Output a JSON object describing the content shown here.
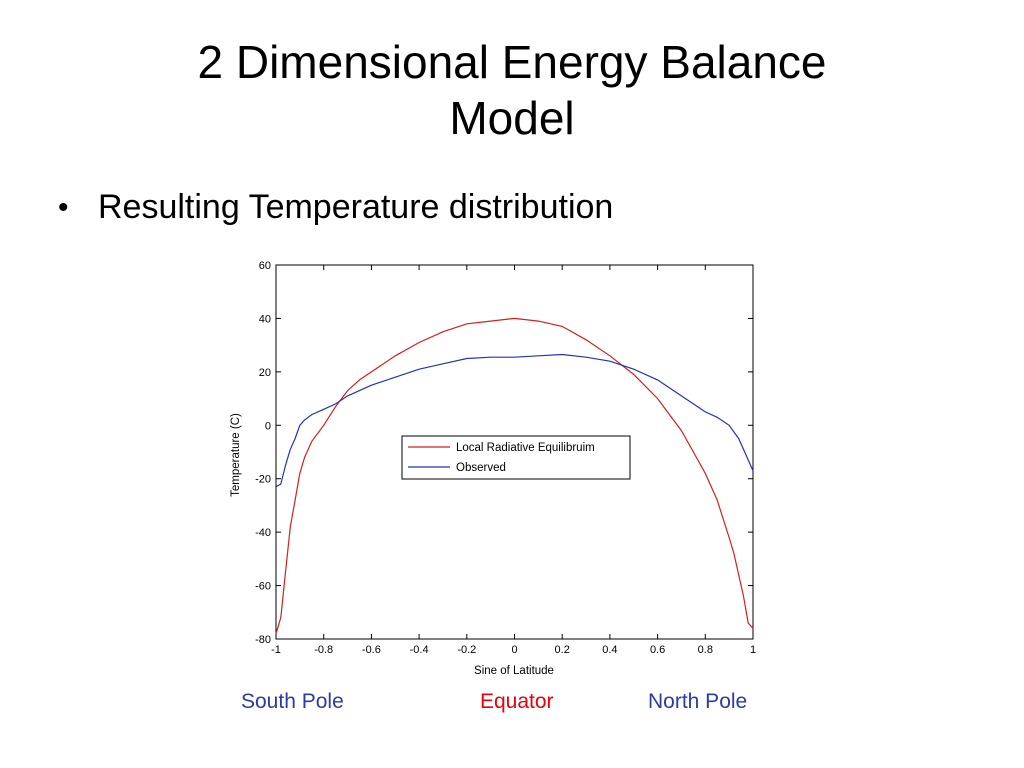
{
  "slide": {
    "title_line1": "2 Dimensional Energy Balance",
    "title_line2": "Model",
    "bullet": "Resulting Temperature distribution"
  },
  "labels": {
    "south": "South Pole",
    "equator": "Equator",
    "north": "North Pole"
  },
  "colors": {
    "south": "#2e3aa6",
    "equator": "#e8000b",
    "north": "#2e3aa6",
    "red_series": "#d21f1f",
    "blue_series": "#2333b7"
  },
  "chart_data": {
    "type": "line",
    "title": "",
    "xlabel": "Sine of Latitude",
    "ylabel": "Temperature (C)",
    "xlim": [
      -1,
      1
    ],
    "ylim": [
      -80,
      60
    ],
    "xticks": [
      -1,
      -0.8,
      -0.6,
      -0.4,
      -0.2,
      0,
      0.2,
      0.4,
      0.6,
      0.8,
      1
    ],
    "xtick_labels": [
      "-1",
      "-0.8",
      "-0.6",
      "-0.4",
      "-0.2",
      "0",
      "0.2",
      "0.4",
      "0.6",
      "0.8",
      "1"
    ],
    "yticks": [
      -80,
      -60,
      -40,
      -20,
      0,
      20,
      40,
      60
    ],
    "ytick_labels": [
      "-80",
      "-60",
      "-40",
      "-20",
      "0",
      "20",
      "40",
      "60"
    ],
    "legend_position": "center",
    "grid": false,
    "series": [
      {
        "name": "Local Radiative Equilibruim",
        "x": [
          -1,
          -0.98,
          -0.96,
          -0.94,
          -0.92,
          -0.9,
          -0.88,
          -0.85,
          -0.8,
          -0.75,
          -0.7,
          -0.65,
          -0.6,
          -0.5,
          -0.4,
          -0.3,
          -0.2,
          -0.1,
          0,
          0.1,
          0.2,
          0.3,
          0.4,
          0.5,
          0.6,
          0.65,
          0.7,
          0.75,
          0.8,
          0.85,
          0.9,
          0.92,
          0.94,
          0.96,
          0.98,
          1
        ],
        "y": [
          -78,
          -72,
          -55,
          -38,
          -28,
          -18,
          -12,
          -6,
          0,
          7,
          13,
          17,
          20,
          26,
          31,
          35,
          38,
          39,
          40,
          39,
          37,
          32,
          26,
          19,
          10,
          4,
          -2,
          -10,
          -18,
          -28,
          -42,
          -48,
          -56,
          -64,
          -74,
          -76
        ]
      },
      {
        "name": "Observed",
        "x": [
          -1,
          -0.98,
          -0.96,
          -0.94,
          -0.92,
          -0.9,
          -0.88,
          -0.85,
          -0.8,
          -0.75,
          -0.7,
          -0.65,
          -0.6,
          -0.5,
          -0.4,
          -0.3,
          -0.2,
          -0.1,
          0,
          0.1,
          0.2,
          0.3,
          0.4,
          0.5,
          0.6,
          0.7,
          0.75,
          0.8,
          0.85,
          0.9,
          0.94,
          0.96,
          0.98,
          1
        ],
        "y": [
          -23,
          -22,
          -15,
          -9,
          -5,
          0,
          2,
          4,
          6,
          8,
          11,
          13,
          15,
          18,
          21,
          23,
          25,
          25.5,
          25.5,
          26,
          26.5,
          25.5,
          24,
          21,
          17,
          11,
          8,
          5,
          3,
          0,
          -5,
          -9,
          -13,
          -17
        ]
      }
    ]
  }
}
